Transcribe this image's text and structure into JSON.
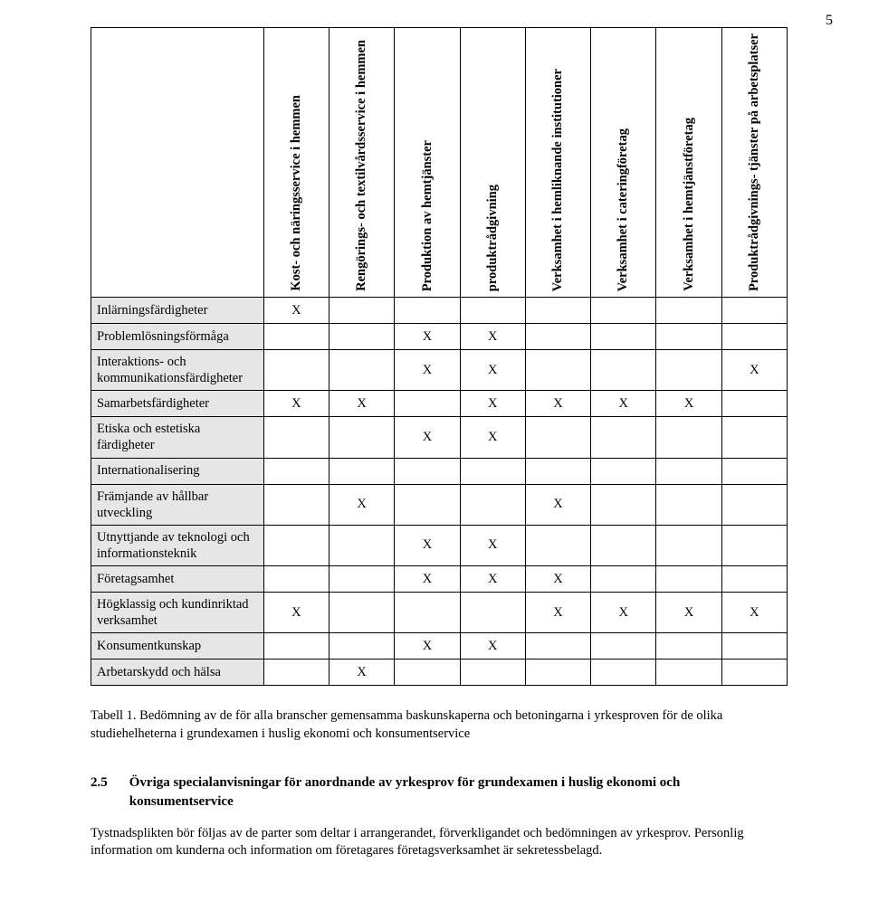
{
  "page_number": "5",
  "table": {
    "columns": [
      "Kost- och näringsservice i hemmen",
      "Rengörings- och textilvårdsservice i hemmen",
      "Produktion av hemtjänster",
      "produktrådgivning",
      "Verksamhet i hemliknande institutioner",
      "Verksamhet i cateringföretag",
      "Verksamhet i hemtjänstföretag",
      "Produktrådgivnings- tjänster på arbetsplatser"
    ],
    "rows": [
      {
        "label": "Inlärningsfärdigheter",
        "cells": [
          "X",
          "",
          "",
          "",
          "",
          "",
          "",
          ""
        ]
      },
      {
        "label": "Problemlösningsförmåga",
        "cells": [
          "",
          "",
          "X",
          "X",
          "",
          "",
          "",
          ""
        ]
      },
      {
        "label": "Interaktions- och kommunikationsfärdigheter",
        "cells": [
          "",
          "",
          "X",
          "X",
          "",
          "",
          "",
          "X"
        ]
      },
      {
        "label": "Samarbetsfärdigheter",
        "cells": [
          "X",
          "X",
          "",
          "X",
          "X",
          "X",
          "X",
          ""
        ]
      },
      {
        "label": "Etiska och estetiska färdigheter",
        "cells": [
          "",
          "",
          "X",
          "X",
          "",
          "",
          "",
          ""
        ]
      },
      {
        "label": "Internationalisering",
        "cells": [
          "",
          "",
          "",
          "",
          "",
          "",
          "",
          ""
        ]
      },
      {
        "label": "Främjande av hållbar utveckling",
        "cells": [
          "",
          "X",
          "",
          "",
          "X",
          "",
          "",
          ""
        ]
      },
      {
        "label": "Utnyttjande av teknologi och informationsteknik",
        "cells": [
          "",
          "",
          "X",
          "X",
          "",
          "",
          "",
          ""
        ]
      },
      {
        "label": "Företagsamhet",
        "cells": [
          "",
          "",
          "X",
          "X",
          "X",
          "",
          "",
          ""
        ]
      },
      {
        "label": "Högklassig och kundinriktad verksamhet",
        "cells": [
          "X",
          "",
          "",
          "",
          "X",
          "X",
          "X",
          "X"
        ]
      },
      {
        "label": "Konsumentkunskap",
        "cells": [
          "",
          "",
          "X",
          "X",
          "",
          "",
          "",
          ""
        ]
      },
      {
        "label": "Arbetarskydd och hälsa",
        "cells": [
          "",
          "X",
          "",
          "",
          "",
          "",
          "",
          ""
        ]
      }
    ]
  },
  "caption": "Tabell 1. Bedömning av de för alla branscher gemensamma baskunskaperna och betoningarna i yrkesproven för de olika studiehelheterna i grundexamen i huslig ekonomi och konsumentservice",
  "section": {
    "number": "2.5",
    "title": "Övriga specialanvisningar för anordnande av yrkesprov för grundexamen i huslig ekonomi och konsumentservice"
  },
  "paragraph": "Tystnadsplikten bör följas av de parter som deltar i arrangerandet, förverkligandet och bedömningen av yrkesprov. Personlig information om kunderna och information om företagares företagsverksamhet är sekretessbelagd.",
  "colors": {
    "row_header_bg": "#e6e6e6",
    "border": "#000000",
    "background": "#ffffff",
    "text": "#000000"
  },
  "fonts": {
    "body_size_pt": 11,
    "heading_size_pt": 11
  }
}
